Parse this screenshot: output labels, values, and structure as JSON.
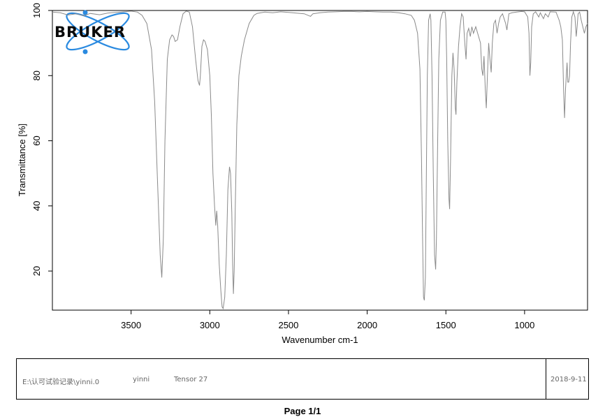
{
  "logo": {
    "text": "BRUKER"
  },
  "chart_data": {
    "type": "line",
    "xlabel": "Wavenumber cm-1",
    "ylabel": "Transmittance [%]",
    "xlim": [
      4000,
      600
    ],
    "ylim": [
      8,
      100
    ],
    "x_reversed": true,
    "x_ticks": [
      3500,
      3000,
      2500,
      2000,
      1500,
      1000
    ],
    "y_ticks": [
      20,
      40,
      60,
      80,
      100
    ],
    "line_color": "#8a8a8a",
    "grid": false,
    "series": [
      {
        "points": [
          [
            4000,
            99.5
          ],
          [
            3950,
            99.3
          ],
          [
            3900,
            98.6
          ],
          [
            3850,
            99.0
          ],
          [
            3800,
            98.4
          ],
          [
            3760,
            99.1
          ],
          [
            3700,
            98.7
          ],
          [
            3650,
            99.2
          ],
          [
            3600,
            99.4
          ],
          [
            3550,
            99.6
          ],
          [
            3500,
            99.8
          ],
          [
            3460,
            99.5
          ],
          [
            3430,
            98.5
          ],
          [
            3400,
            96
          ],
          [
            3370,
            88
          ],
          [
            3350,
            72
          ],
          [
            3330,
            45
          ],
          [
            3315,
            25
          ],
          [
            3305,
            18
          ],
          [
            3295,
            30
          ],
          [
            3285,
            60
          ],
          [
            3270,
            85
          ],
          [
            3255,
            91
          ],
          [
            3240,
            92.5
          ],
          [
            3230,
            92
          ],
          [
            3220,
            90.5
          ],
          [
            3205,
            91
          ],
          [
            3190,
            95
          ],
          [
            3170,
            99
          ],
          [
            3150,
            99.8
          ],
          [
            3130,
            99.5
          ],
          [
            3110,
            95
          ],
          [
            3090,
            85
          ],
          [
            3075,
            78.5
          ],
          [
            3065,
            77
          ],
          [
            3060,
            80
          ],
          [
            3050,
            89
          ],
          [
            3040,
            91
          ],
          [
            3030,
            90.5
          ],
          [
            3015,
            88
          ],
          [
            3000,
            80
          ],
          [
            2990,
            68
          ],
          [
            2980,
            50
          ],
          [
            2970,
            40
          ],
          [
            2962,
            34
          ],
          [
            2956,
            38.5
          ],
          [
            2950,
            34
          ],
          [
            2940,
            22
          ],
          [
            2930,
            14
          ],
          [
            2922,
            9
          ],
          [
            2915,
            8.5
          ],
          [
            2905,
            12
          ],
          [
            2895,
            25
          ],
          [
            2885,
            45
          ],
          [
            2875,
            52
          ],
          [
            2868,
            50
          ],
          [
            2860,
            38
          ],
          [
            2855,
            22
          ],
          [
            2850,
            13
          ],
          [
            2845,
            20
          ],
          [
            2838,
            40
          ],
          [
            2828,
            65
          ],
          [
            2815,
            80
          ],
          [
            2800,
            86
          ],
          [
            2780,
            91
          ],
          [
            2750,
            96
          ],
          [
            2720,
            98.5
          ],
          [
            2700,
            99.1
          ],
          [
            2650,
            99.5
          ],
          [
            2600,
            99.3
          ],
          [
            2550,
            99.6
          ],
          [
            2500,
            99.4
          ],
          [
            2450,
            99.2
          ],
          [
            2400,
            99.0
          ],
          [
            2360,
            98.2
          ],
          [
            2345,
            99.0
          ],
          [
            2300,
            99.3
          ],
          [
            2250,
            99.5
          ],
          [
            2200,
            99.6
          ],
          [
            2150,
            99.7
          ],
          [
            2100,
            99.7
          ],
          [
            2050,
            99.6
          ],
          [
            2000,
            99.7
          ],
          [
            1950,
            99.6
          ],
          [
            1900,
            99.5
          ],
          [
            1850,
            99.5
          ],
          [
            1800,
            99.3
          ],
          [
            1760,
            99.0
          ],
          [
            1720,
            98.5
          ],
          [
            1700,
            97
          ],
          [
            1680,
            93
          ],
          [
            1665,
            82
          ],
          [
            1655,
            55
          ],
          [
            1648,
            30
          ],
          [
            1642,
            12
          ],
          [
            1637,
            11
          ],
          [
            1630,
            18
          ],
          [
            1625,
            45
          ],
          [
            1618,
            80
          ],
          [
            1610,
            97
          ],
          [
            1600,
            99
          ],
          [
            1595,
            97
          ],
          [
            1588,
            80
          ],
          [
            1580,
            50
          ],
          [
            1572,
            25
          ],
          [
            1565,
            20.5
          ],
          [
            1560,
            30
          ],
          [
            1552,
            60
          ],
          [
            1545,
            85
          ],
          [
            1535,
            97
          ],
          [
            1520,
            99.5
          ],
          [
            1505,
            99.5
          ],
          [
            1500,
            97
          ],
          [
            1495,
            85
          ],
          [
            1488,
            60
          ],
          [
            1480,
            42
          ],
          [
            1476,
            39
          ],
          [
            1470,
            55
          ],
          [
            1462,
            80
          ],
          [
            1455,
            87
          ],
          [
            1448,
            82
          ],
          [
            1440,
            70
          ],
          [
            1436,
            68
          ],
          [
            1430,
            78
          ],
          [
            1420,
            89
          ],
          [
            1410,
            95
          ],
          [
            1400,
            99
          ],
          [
            1390,
            98
          ],
          [
            1380,
            90
          ],
          [
            1372,
            85
          ],
          [
            1365,
            93
          ],
          [
            1355,
            94.5
          ],
          [
            1345,
            92
          ],
          [
            1335,
            95
          ],
          [
            1325,
            93
          ],
          [
            1310,
            95
          ],
          [
            1295,
            92.5
          ],
          [
            1280,
            90
          ],
          [
            1272,
            82
          ],
          [
            1265,
            80
          ],
          [
            1258,
            86
          ],
          [
            1250,
            76
          ],
          [
            1243,
            70
          ],
          [
            1236,
            80
          ],
          [
            1228,
            90
          ],
          [
            1220,
            85
          ],
          [
            1212,
            81
          ],
          [
            1205,
            90
          ],
          [
            1195,
            96
          ],
          [
            1185,
            97
          ],
          [
            1175,
            93
          ],
          [
            1165,
            96
          ],
          [
            1155,
            98
          ],
          [
            1140,
            99
          ],
          [
            1120,
            96
          ],
          [
            1112,
            94
          ],
          [
            1100,
            99
          ],
          [
            1080,
            99.3
          ],
          [
            1050,
            99.5
          ],
          [
            1020,
            99.7
          ],
          [
            1000,
            99.6
          ],
          [
            980,
            98
          ],
          [
            972,
            93
          ],
          [
            966,
            80
          ],
          [
            961,
            84
          ],
          [
            955,
            95
          ],
          [
            945,
            99
          ],
          [
            930,
            99.6
          ],
          [
            910,
            98
          ],
          [
            900,
            99.3
          ],
          [
            880,
            97.5
          ],
          [
            868,
            99
          ],
          [
            850,
            98
          ],
          [
            838,
            99.6
          ],
          [
            800,
            99.5
          ],
          [
            780,
            97
          ],
          [
            770,
            95
          ],
          [
            760,
            91
          ],
          [
            752,
            75
          ],
          [
            746,
            67
          ],
          [
            740,
            76
          ],
          [
            735,
            80
          ],
          [
            730,
            84
          ],
          [
            725,
            78
          ],
          [
            720,
            78
          ],
          [
            714,
            80
          ],
          [
            708,
            90
          ],
          [
            700,
            98
          ],
          [
            690,
            99.6
          ],
          [
            680,
            98
          ],
          [
            672,
            92
          ],
          [
            666,
            95
          ],
          [
            660,
            99
          ],
          [
            650,
            99.5
          ],
          [
            640,
            97
          ],
          [
            630,
            95
          ],
          [
            620,
            93
          ],
          [
            610,
            95
          ],
          [
            600,
            96
          ]
        ]
      }
    ]
  },
  "footer": {
    "path": "E:\\认可试验记录\\yinni.0",
    "user": "yinni",
    "instrument": "Tensor 27",
    "date": "2018-9-11"
  },
  "page": {
    "label": "Page 1/1"
  }
}
